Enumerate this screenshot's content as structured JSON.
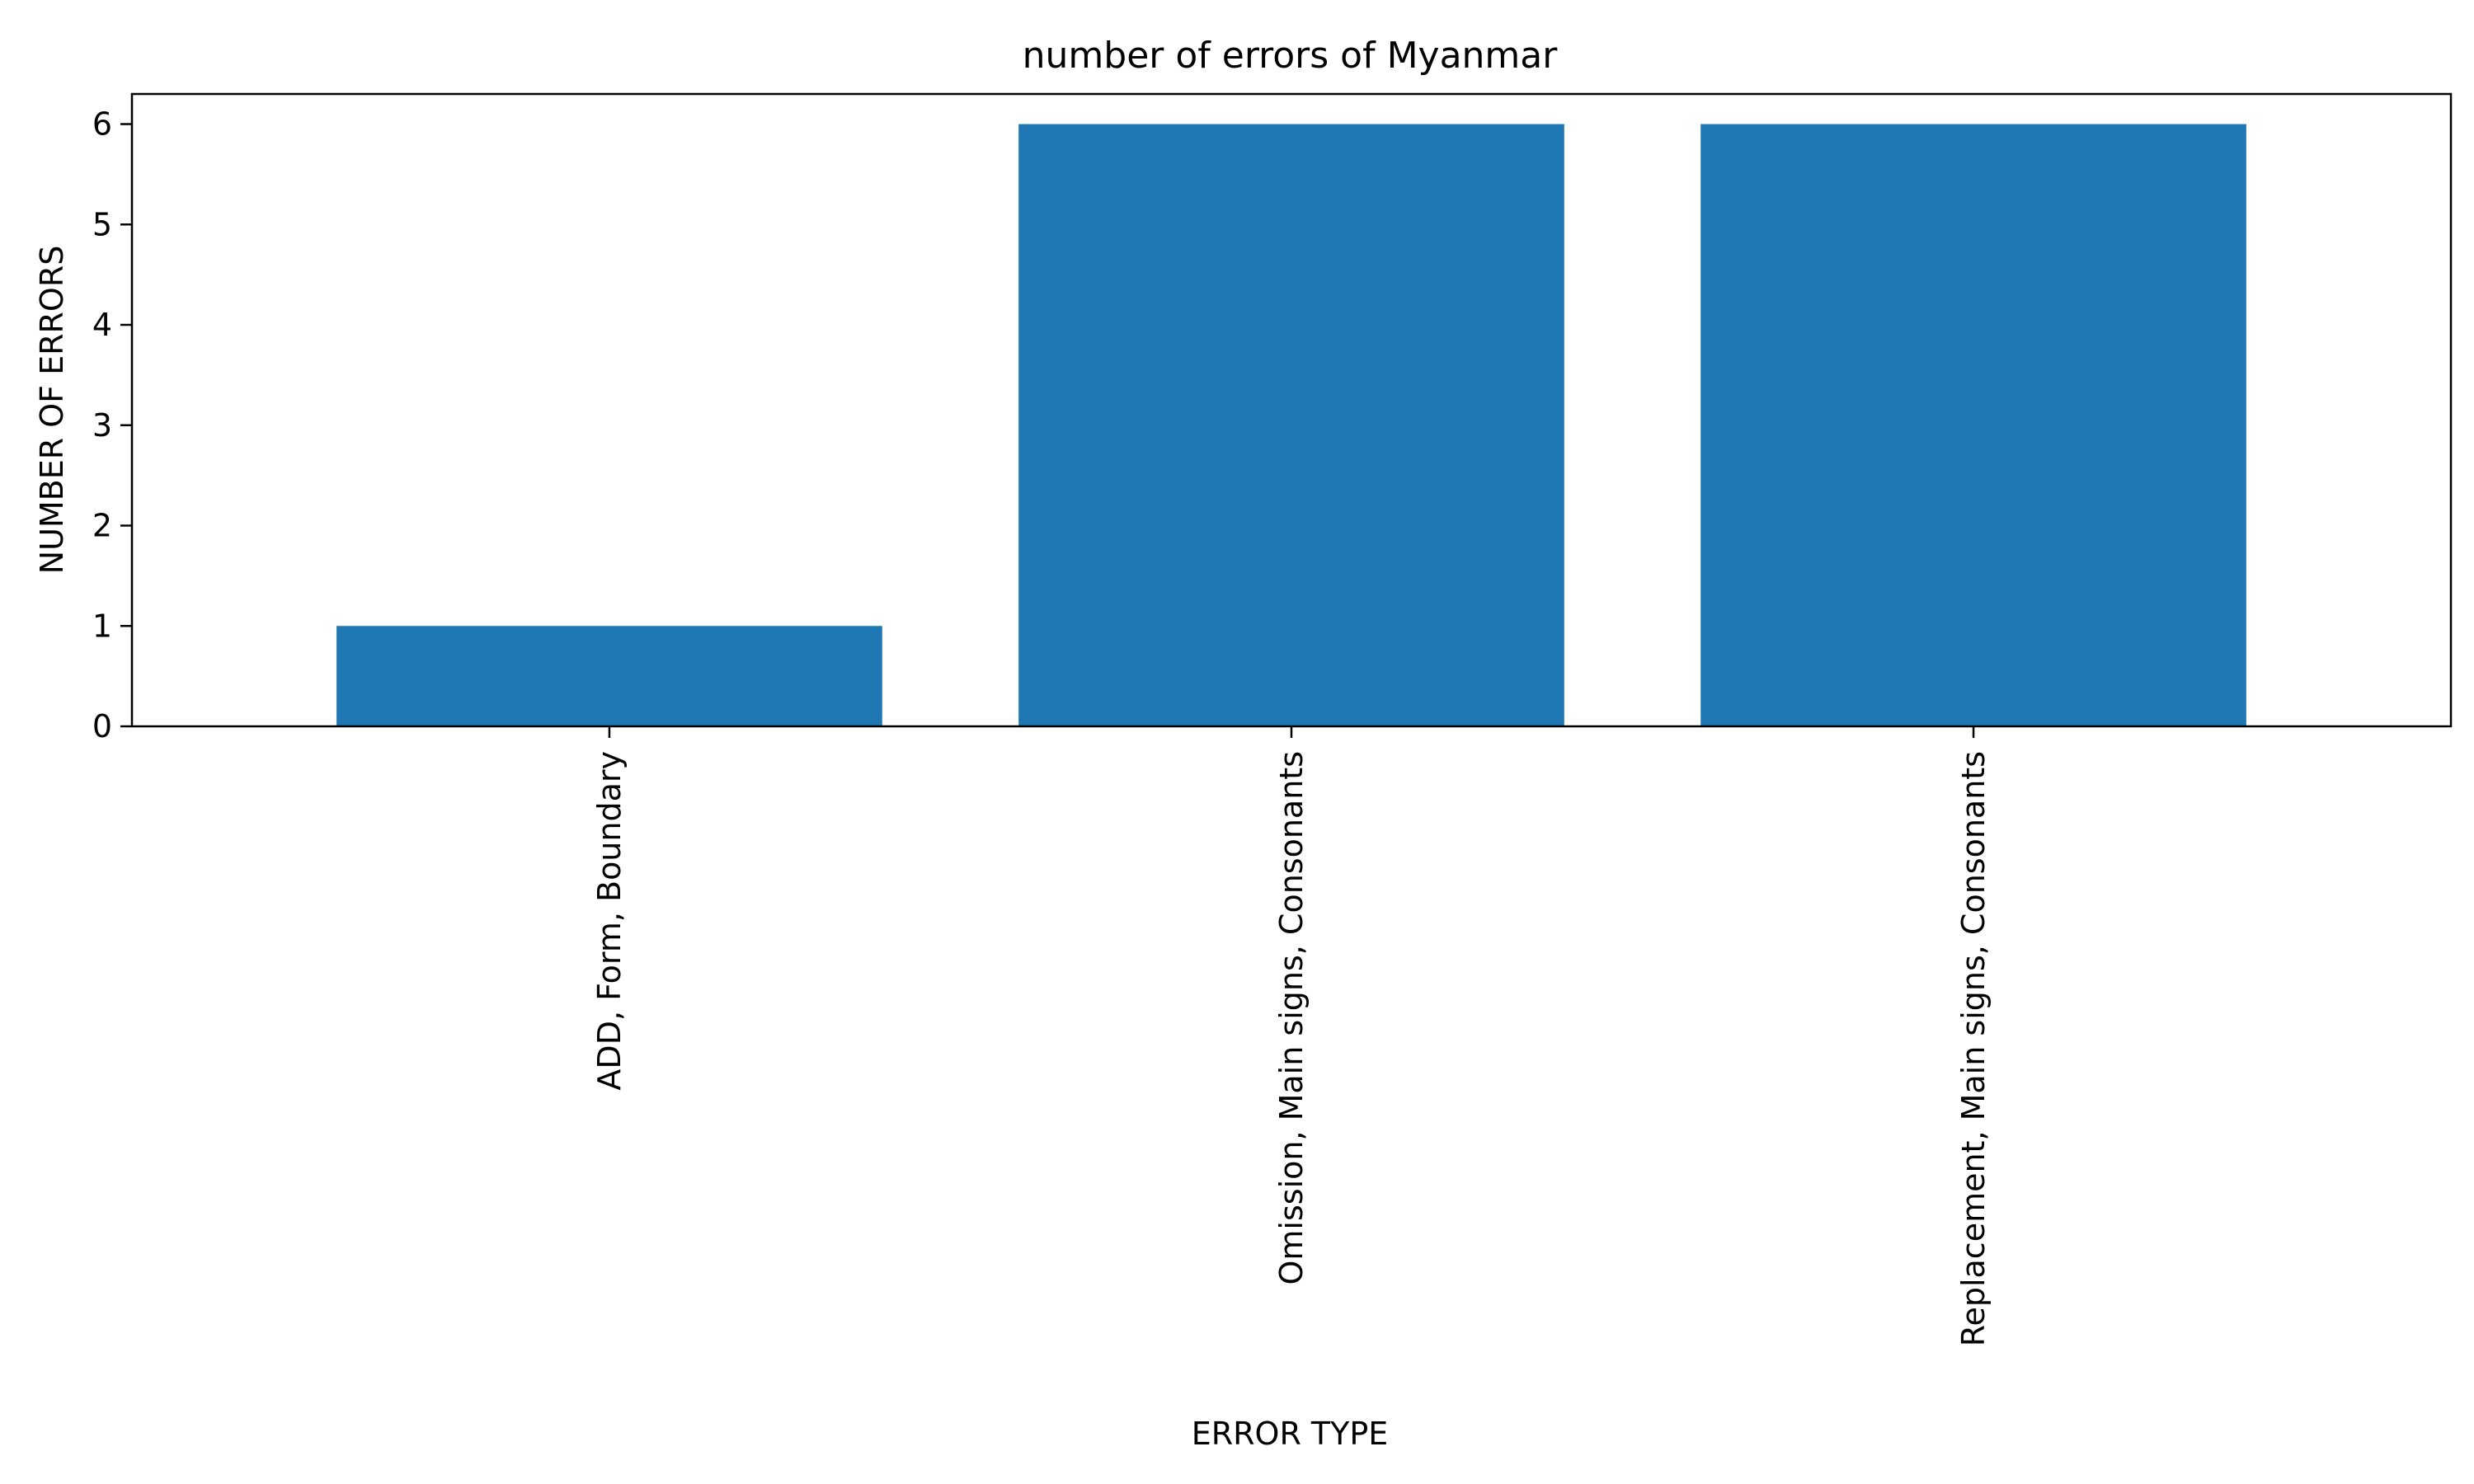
{
  "chart_data": {
    "type": "bar",
    "title": "number of errors of Myanmar",
    "xlabel": "ERROR TYPE",
    "ylabel": "NUMBER OF ERRORS",
    "categories": [
      "ADD, Form, Boundary",
      "Omission, Main signs, Consonants",
      "Replacement, Main signs, Consonants"
    ],
    "values": [
      1,
      6,
      6
    ],
    "ylim": [
      0,
      6.3
    ],
    "yticks": [
      0,
      1,
      2,
      3,
      4,
      5,
      6
    ],
    "bar_color": "#1f77b4",
    "grid": false,
    "legend": "none",
    "x_tick_rotation_deg": 90
  }
}
